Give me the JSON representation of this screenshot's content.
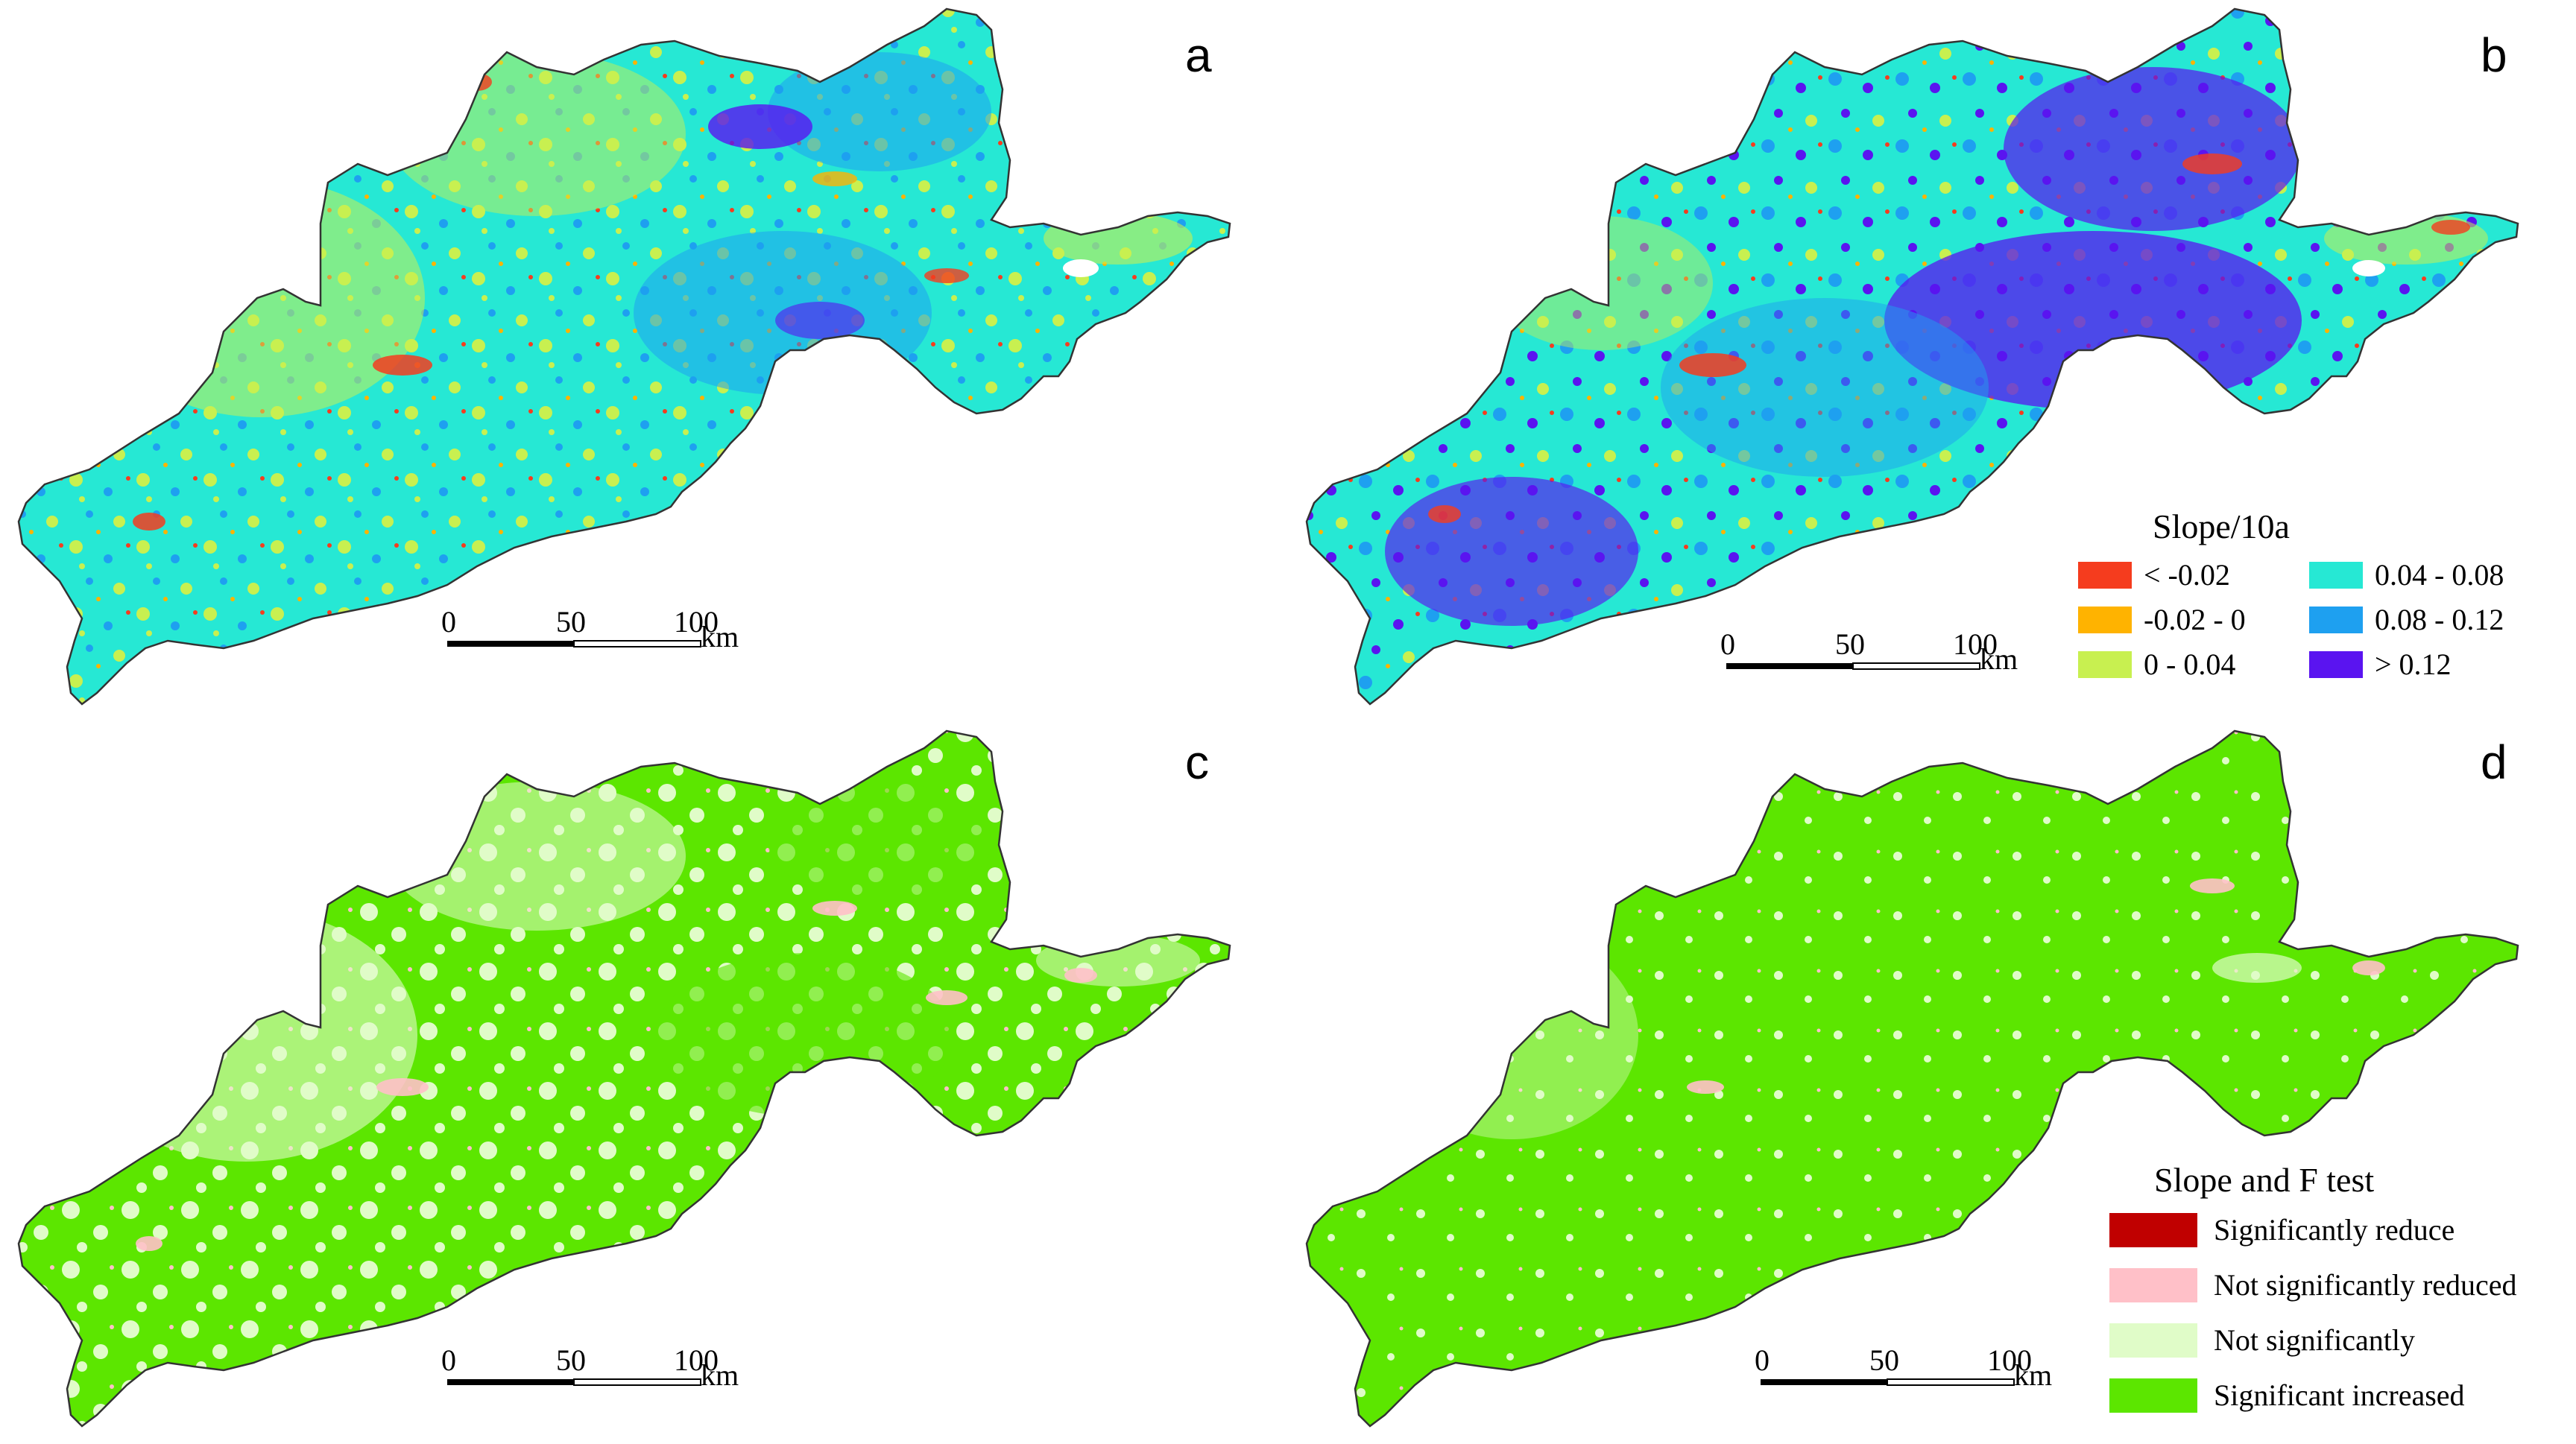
{
  "panels": {
    "a": {
      "label": "a",
      "type": "slope"
    },
    "b": {
      "label": "b",
      "type": "slope"
    },
    "c": {
      "label": "c",
      "type": "sig"
    },
    "d": {
      "label": "d",
      "type": "sig"
    }
  },
  "scale_bar": {
    "ticks": [
      "0",
      "50",
      "100"
    ],
    "unit": "km"
  },
  "slope_legend": {
    "title": "Slope/10a",
    "classes": [
      {
        "label": "< -0.02",
        "color": "#f53c1e"
      },
      {
        "label": "0.04 - 0.08",
        "color": "#26e8d4"
      },
      {
        "label": "-0.02 - 0",
        "color": "#ffb300"
      },
      {
        "label": "0.08 - 0.12",
        "color": "#1ea0f0"
      },
      {
        "label": "0 - 0.04",
        "color": "#c8f050"
      },
      {
        "label": "> 0.12",
        "color": "#5a14f0"
      }
    ]
  },
  "sig_legend": {
    "title": "Slope and F test",
    "classes": [
      {
        "label": "Significantly reduce",
        "color": "#c00000"
      },
      {
        "label": "Not significantly reduced",
        "color": "#ffc0c8"
      },
      {
        "label": "Not significantly",
        "color": "#e0fcc8"
      },
      {
        "label": "Significant increased",
        "color": "#5ce600"
      }
    ]
  }
}
